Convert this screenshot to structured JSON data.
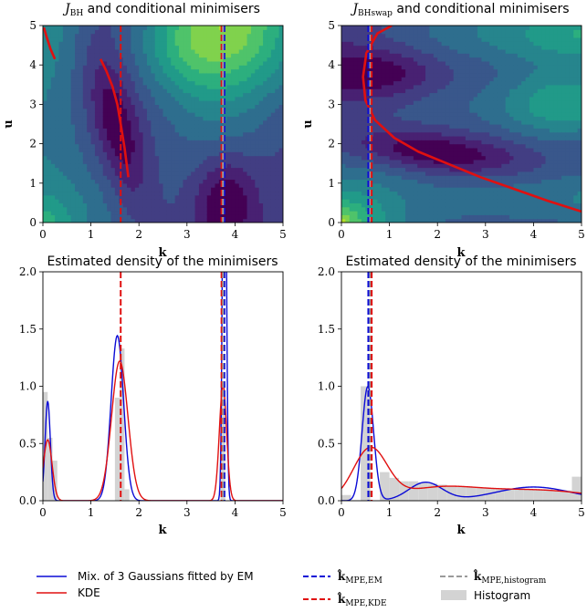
{
  "colors": {
    "em": "#0b0bd6",
    "kde": "#e01010",
    "hist_line": "#9a9a9a",
    "hist_fill": "#d3d3d3",
    "contour_low": "#440154",
    "contour_high": "#b5de2b"
  },
  "legend": {
    "em_fit": "Mix. of 3 Gaussians fitted by EM",
    "kde": "KDE",
    "k_mpe_em": "k̂",
    "k_mpe_em_sub": "MPE,EM",
    "k_mpe_kde": "k̂",
    "k_mpe_kde_sub": "MPE,KDE",
    "k_mpe_hist": "k̂",
    "k_mpe_hist_sub": "MPE,histogram",
    "histogram": "Histogram"
  },
  "chart_data": [
    {
      "id": "contour-bh",
      "type": "heatmap",
      "title": "J",
      "title_sub": "BH",
      "title_rest": " and conditional minimisers",
      "xlabel": "k",
      "ylabel": "u",
      "xlim": [
        0,
        5
      ],
      "ylim": [
        0,
        5
      ],
      "xticks": [
        "0",
        "1",
        "2",
        "3",
        "4",
        "5"
      ],
      "yticks": [
        "0",
        "1",
        "2",
        "3",
        "4",
        "5"
      ],
      "minimiser_curves": [
        [
          [
            0.02,
            4.95
          ],
          [
            0.08,
            4.7
          ],
          [
            0.16,
            4.4
          ],
          [
            0.25,
            4.15
          ]
        ],
        [
          [
            1.2,
            4.15
          ],
          [
            1.32,
            3.85
          ],
          [
            1.45,
            3.45
          ],
          [
            1.55,
            3.0
          ],
          [
            1.62,
            2.5
          ],
          [
            1.7,
            1.9
          ],
          [
            1.78,
            1.15
          ]
        ]
      ],
      "vlines": [
        {
          "method": "kde",
          "x": 1.62
        },
        {
          "method": "em",
          "x": 3.78
        },
        {
          "method": "kde",
          "x": 3.72
        },
        {
          "method": "hist",
          "x": 3.75
        }
      ]
    },
    {
      "id": "contour-bhswap",
      "type": "heatmap",
      "title": "J",
      "title_sub": "BHswap",
      "title_rest": " and conditional minimisers",
      "xlabel": "k",
      "ylabel": "u",
      "xlim": [
        0,
        5
      ],
      "ylim": [
        0,
        5
      ],
      "xticks": [
        "0",
        "1",
        "2",
        "3",
        "4",
        "5"
      ],
      "yticks": [
        "0",
        "1",
        "2",
        "3",
        "4",
        "5"
      ],
      "minimiser_curves": [
        [
          [
            1.05,
            5.0
          ],
          [
            0.75,
            4.8
          ],
          [
            0.52,
            4.3
          ],
          [
            0.45,
            3.7
          ],
          [
            0.5,
            3.1
          ],
          [
            0.7,
            2.6
          ],
          [
            1.1,
            2.15
          ],
          [
            1.6,
            1.8
          ],
          [
            2.2,
            1.5
          ],
          [
            2.9,
            1.15
          ],
          [
            3.6,
            0.85
          ],
          [
            4.3,
            0.55
          ],
          [
            5.0,
            0.28
          ]
        ]
      ],
      "vlines": [
        {
          "method": "em",
          "x": 0.56
        },
        {
          "method": "hist",
          "x": 0.6
        },
        {
          "method": "kde",
          "x": 0.63
        }
      ]
    },
    {
      "id": "density-bh",
      "type": "line",
      "title": "Estimated density of the minimisers",
      "xlabel": "k",
      "ylabel": "",
      "xlim": [
        0,
        5
      ],
      "ylim": [
        0,
        2.0
      ],
      "xticks": [
        "0",
        "1",
        "2",
        "3",
        "4",
        "5"
      ],
      "yticks": [
        "0.0",
        "0.5",
        "1.0",
        "1.5",
        "2.0"
      ],
      "histogram": {
        "bin_width": 0.1,
        "bins": [
          [
            0.0,
            0.95
          ],
          [
            0.1,
            0.55
          ],
          [
            0.2,
            0.35
          ],
          [
            1.5,
            0.9
          ],
          [
            1.6,
            1.33
          ],
          [
            1.7,
            0.1
          ],
          [
            3.7,
            1.02
          ]
        ]
      },
      "series": [
        {
          "name": "Mix. of 3 Gaussians fitted by EM",
          "method": "em",
          "components": [
            {
              "mu": 0.1,
              "sigma": 0.055,
              "w": 0.12
            },
            {
              "mu": 1.55,
              "sigma": 0.13,
              "w": 0.47
            },
            {
              "mu": 3.78,
              "sigma": 0.035,
              "w": 0.41
            }
          ]
        },
        {
          "name": "KDE",
          "method": "kde",
          "components": [
            {
              "mu": 0.1,
              "sigma": 0.09,
              "w": 0.12
            },
            {
              "mu": 1.6,
              "sigma": 0.17,
              "w": 0.52
            },
            {
              "mu": 3.75,
              "sigma": 0.075,
              "w": 0.19
            }
          ]
        }
      ],
      "vlines": [
        {
          "method": "kde",
          "x": 1.62
        },
        {
          "method": "em",
          "x": 3.78
        },
        {
          "method": "kde",
          "x": 3.72
        },
        {
          "method": "hist",
          "x": 3.75
        }
      ]
    },
    {
      "id": "density-bhswap",
      "type": "line",
      "title": "Estimated density of the minimisers",
      "xlabel": "k",
      "ylabel": "",
      "xlim": [
        0,
        5
      ],
      "ylim": [
        0,
        2.0
      ],
      "xticks": [
        "0",
        "1",
        "2",
        "3",
        "4",
        "5"
      ],
      "yticks": [
        "0.0",
        "0.5",
        "1.0",
        "1.5",
        "2.0"
      ],
      "histogram": {
        "bin_width": 0.2,
        "bins": [
          [
            0.0,
            0.05
          ],
          [
            0.4,
            1.0
          ],
          [
            0.8,
            0.25
          ],
          [
            1.0,
            0.2
          ],
          [
            1.2,
            0.17
          ],
          [
            1.4,
            0.17
          ],
          [
            1.6,
            0.16
          ],
          [
            1.8,
            0.15
          ],
          [
            2.0,
            0.14
          ],
          [
            2.2,
            0.13
          ],
          [
            2.4,
            0.12
          ],
          [
            2.6,
            0.12
          ],
          [
            2.8,
            0.11
          ],
          [
            3.0,
            0.11
          ],
          [
            3.2,
            0.11
          ],
          [
            3.4,
            0.1
          ],
          [
            3.6,
            0.1
          ],
          [
            3.8,
            0.1
          ],
          [
            4.0,
            0.1
          ],
          [
            4.2,
            0.1
          ],
          [
            4.4,
            0.09
          ],
          [
            4.6,
            0.09
          ],
          [
            4.8,
            0.21
          ]
        ]
      },
      "series": [
        {
          "name": "Mix. of 3 Gaussians fitted by EM",
          "method": "em",
          "components": [
            {
              "mu": 0.55,
              "sigma": 0.12,
              "w": 0.3
            },
            {
              "mu": 1.75,
              "sigma": 0.35,
              "w": 0.14
            },
            {
              "mu": 4.0,
              "sigma": 0.8,
              "w": 0.24
            }
          ]
        },
        {
          "name": "KDE",
          "method": "kde",
          "components": [
            {
              "mu": 0.6,
              "sigma": 0.35,
              "w": 0.39
            },
            {
              "mu": 2.0,
              "sigma": 0.8,
              "w": 0.2
            },
            {
              "mu": 4.0,
              "sigma": 1.2,
              "w": 0.28
            }
          ]
        }
      ],
      "vlines": [
        {
          "method": "em",
          "x": 0.56
        },
        {
          "method": "hist",
          "x": 0.6
        },
        {
          "method": "kde",
          "x": 0.63
        }
      ]
    }
  ]
}
